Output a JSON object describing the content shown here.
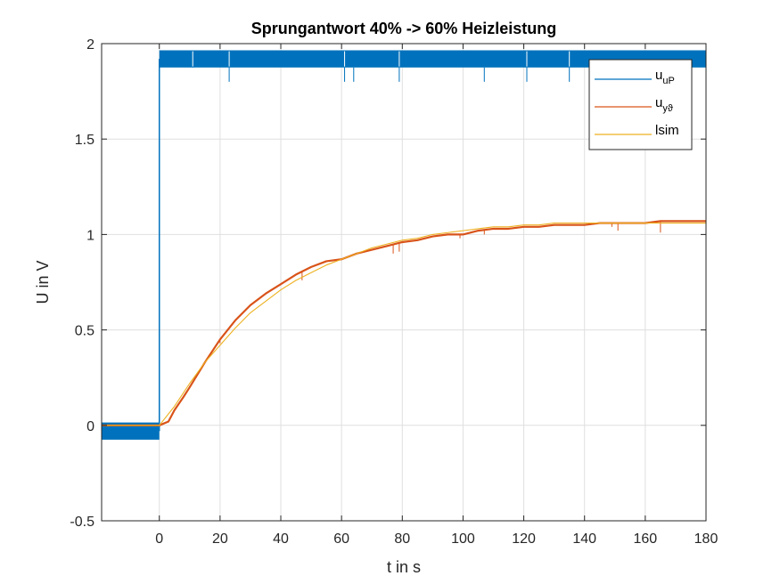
{
  "chart_data": {
    "type": "line",
    "title": "Sprungantwort 40% -> 60% Heizleistung",
    "xlabel": "t in s",
    "ylabel": "U in V",
    "xlim": [
      -19,
      180
    ],
    "ylim": [
      -0.5,
      2
    ],
    "xticks": [
      0,
      20,
      40,
      60,
      80,
      100,
      120,
      140,
      160,
      180
    ],
    "yticks": [
      -0.5,
      0,
      0.5,
      1,
      1.5,
      2
    ],
    "xtick_labels": [
      "0",
      "20",
      "40",
      "60",
      "80",
      "100",
      "120",
      "140",
      "160",
      "180"
    ],
    "ytick_labels": [
      "-0.5",
      "0",
      "0.5",
      "1",
      "1.5",
      "2"
    ],
    "grid": true,
    "legend_position": "top-right",
    "series": [
      {
        "name": "u_uP",
        "legend_main": "u",
        "legend_sub": "uP",
        "color": "#0072BD",
        "noise_band": 0.09,
        "x": [
          -19,
          0,
          0,
          180
        ],
        "y": [
          -0.03,
          -0.03,
          1.92,
          1.92
        ],
        "spikes_down": [
          {
            "x": 11,
            "y": 1.88
          },
          {
            "x": 23,
            "y": 1.8
          },
          {
            "x": 61,
            "y": 1.8
          },
          {
            "x": 64,
            "y": 1.8
          },
          {
            "x": 79,
            "y": 1.8
          },
          {
            "x": 107,
            "y": 1.8
          },
          {
            "x": 121,
            "y": 1.8
          },
          {
            "x": 135,
            "y": 1.8
          }
        ]
      },
      {
        "name": "u_yθ",
        "legend_main": "u",
        "legend_sub": "yϑ",
        "color": "#D95319",
        "x": [
          -19,
          0,
          3,
          5,
          8,
          10,
          15,
          20,
          25,
          30,
          35,
          40,
          45,
          50,
          55,
          60,
          65,
          70,
          75,
          80,
          85,
          90,
          95,
          100,
          105,
          110,
          115,
          120,
          125,
          130,
          135,
          140,
          145,
          150,
          155,
          160,
          165,
          170,
          175,
          180
        ],
        "y": [
          0.0,
          0.0,
          0.02,
          0.08,
          0.15,
          0.2,
          0.33,
          0.45,
          0.55,
          0.63,
          0.69,
          0.74,
          0.79,
          0.83,
          0.86,
          0.87,
          0.9,
          0.92,
          0.94,
          0.96,
          0.97,
          0.99,
          1.0,
          1.0,
          1.02,
          1.03,
          1.03,
          1.04,
          1.04,
          1.05,
          1.05,
          1.05,
          1.06,
          1.06,
          1.06,
          1.06,
          1.07,
          1.07,
          1.07,
          1.07
        ],
        "spikes_down": [
          {
            "x": 20,
            "y": 0.43
          },
          {
            "x": 47,
            "y": 0.76
          },
          {
            "x": 77,
            "y": 0.9
          },
          {
            "x": 79,
            "y": 0.91
          },
          {
            "x": 99,
            "y": 0.98
          },
          {
            "x": 107,
            "y": 1.0
          },
          {
            "x": 149,
            "y": 1.04
          },
          {
            "x": 151,
            "y": 1.02
          },
          {
            "x": 165,
            "y": 1.01
          }
        ]
      },
      {
        "name": "lsim",
        "legend_main": "lsim",
        "legend_sub": "",
        "color": "#EDB120",
        "x": [
          -19,
          0,
          5,
          10,
          15,
          20,
          25,
          30,
          35,
          40,
          45,
          50,
          55,
          60,
          65,
          70,
          75,
          80,
          85,
          90,
          95,
          100,
          105,
          110,
          115,
          120,
          125,
          130,
          135,
          140,
          145,
          150,
          155,
          160,
          165,
          170,
          175,
          180
        ],
        "y": [
          0.0,
          0.0,
          0.1,
          0.22,
          0.33,
          0.42,
          0.51,
          0.59,
          0.65,
          0.71,
          0.76,
          0.8,
          0.84,
          0.87,
          0.9,
          0.93,
          0.95,
          0.97,
          0.98,
          1.0,
          1.01,
          1.02,
          1.03,
          1.04,
          1.04,
          1.05,
          1.05,
          1.06,
          1.06,
          1.06,
          1.06,
          1.06,
          1.06,
          1.06,
          1.06,
          1.06,
          1.06,
          1.06
        ]
      }
    ]
  }
}
